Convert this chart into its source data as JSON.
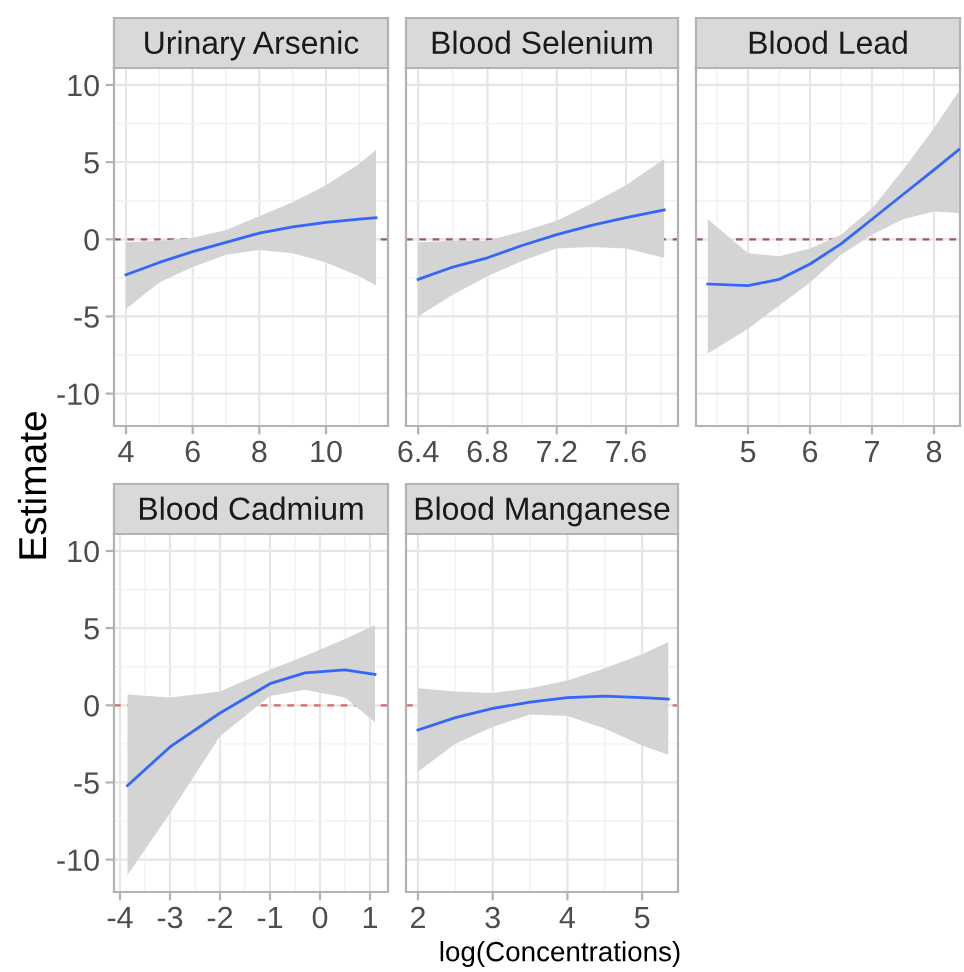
{
  "chart_data": [
    {
      "type": "line",
      "title": "Urinary Arsenic",
      "ylabel": "Estimate",
      "x": [
        4,
        5,
        6,
        7,
        8,
        9,
        10,
        11,
        11.5
      ],
      "series": [
        {
          "color": "#3366ff",
          "values": [
            -2.3,
            -1.5,
            -0.8,
            -0.2,
            0.4,
            0.8,
            1.1,
            1.3,
            1.4
          ],
          "lower": [
            -4.5,
            -2.8,
            -1.8,
            -1.0,
            -0.7,
            -0.9,
            -1.5,
            -2.4,
            -3.0
          ],
          "upper": [
            -0.2,
            -0.1,
            0.1,
            0.6,
            1.5,
            2.4,
            3.5,
            4.9,
            5.8
          ]
        }
      ],
      "xlim": [
        3.64,
        11.86
      ],
      "xticks": [
        4,
        6,
        8,
        10
      ],
      "ylim": [
        -12.1,
        11.1
      ],
      "yticks": [
        -10,
        -5,
        0,
        5,
        10
      ],
      "ref_lines": [
        {
          "axis": "y",
          "value": 0,
          "color": "#a05a5a",
          "line_style": "dashed"
        }
      ],
      "grid": true
    },
    {
      "type": "line",
      "title": "Blood Selenium",
      "x": [
        6.4,
        6.6,
        6.8,
        7.0,
        7.2,
        7.4,
        7.6,
        7.82
      ],
      "series": [
        {
          "color": "#3366ff",
          "values": [
            -2.6,
            -1.8,
            -1.2,
            -0.4,
            0.3,
            0.9,
            1.4,
            1.9
          ],
          "lower": [
            -5.0,
            -3.6,
            -2.4,
            -1.4,
            -0.6,
            -0.5,
            -0.6,
            -1.2
          ],
          "upper": [
            -0.2,
            -0.1,
            -0.1,
            0.5,
            1.2,
            2.3,
            3.5,
            5.2
          ]
        }
      ],
      "xlim": [
        6.33,
        7.9
      ],
      "xticks": [
        6.4,
        6.8,
        7.2,
        7.6
      ],
      "ylim": [
        -12.1,
        11.1
      ],
      "yticks": [
        -10,
        -5,
        0,
        5,
        10
      ],
      "ref_lines": [
        {
          "axis": "y",
          "value": 0,
          "color": "#a05a5a",
          "line_style": "dashed"
        }
      ],
      "grid": true,
      "tick_labels": "x"
    },
    {
      "type": "line",
      "title": "Blood Lead",
      "x": [
        4.35,
        5,
        5.5,
        6,
        6.5,
        7,
        7.5,
        8,
        8.4
      ],
      "series": [
        {
          "color": "#3366ff",
          "values": [
            -2.9,
            -3.0,
            -2.6,
            -1.6,
            -0.3,
            1.3,
            2.9,
            4.5,
            5.8
          ],
          "lower": [
            -7.4,
            -5.8,
            -4.3,
            -2.8,
            -1.0,
            0.3,
            1.3,
            1.8,
            1.7
          ],
          "upper": [
            1.3,
            -0.9,
            -1.1,
            -0.6,
            0.3,
            2.0,
            4.5,
            7.2,
            9.6
          ]
        }
      ],
      "xlim": [
        4.16,
        8.42
      ],
      "xticks": [
        5,
        6,
        7,
        8
      ],
      "ylim": [
        -12.1,
        11.1
      ],
      "yticks": [
        -10,
        -5,
        0,
        5,
        10
      ],
      "ref_lines": [
        {
          "axis": "y",
          "value": 0,
          "color": "#a05a5a",
          "line_style": "dashed"
        }
      ],
      "grid": true,
      "tick_labels": "x"
    },
    {
      "type": "line",
      "title": "Blood Cadmium",
      "x": [
        -3.85,
        -3,
        -2,
        -1,
        -0.3,
        0.5,
        1.1
      ],
      "series": [
        {
          "color": "#3366ff",
          "values": [
            -5.2,
            -2.7,
            -0.5,
            1.4,
            2.1,
            2.3,
            2.0
          ],
          "lower": [
            -11.0,
            -7.0,
            -2.0,
            0.6,
            1.0,
            0.5,
            -1.1
          ],
          "upper": [
            0.7,
            0.5,
            0.9,
            2.3,
            3.2,
            4.3,
            5.2
          ]
        }
      ],
      "xlim": [
        -4.12,
        1.36
      ],
      "xticks": [
        -4,
        -3,
        -2,
        -1,
        0,
        1
      ],
      "ylim": [
        -12.1,
        11.1
      ],
      "yticks": [
        -10,
        -5,
        0,
        5,
        10
      ],
      "ref_lines": [
        {
          "axis": "y",
          "value": 0,
          "color": "#e06666",
          "line_style": "dashed"
        }
      ],
      "grid": true
    },
    {
      "type": "line",
      "title": "Blood Manganese",
      "xlabel": "log(Concentrations)",
      "x": [
        2,
        2.5,
        3,
        3.5,
        4,
        4.5,
        5,
        5.35
      ],
      "series": [
        {
          "color": "#3366ff",
          "values": [
            -1.6,
            -0.8,
            -0.2,
            0.2,
            0.5,
            0.6,
            0.5,
            0.4
          ],
          "lower": [
            -4.3,
            -2.5,
            -1.4,
            -0.6,
            -0.7,
            -1.5,
            -2.6,
            -3.2
          ],
          "upper": [
            1.1,
            0.9,
            0.8,
            1.1,
            1.6,
            2.4,
            3.3,
            4.1
          ]
        }
      ],
      "xlim": [
        1.84,
        5.48
      ],
      "xticks": [
        2,
        3,
        4,
        5
      ],
      "ylim": [
        -12.1,
        11.1
      ],
      "yticks": [
        -10,
        -5,
        0,
        5,
        10
      ],
      "ref_lines": [
        {
          "axis": "y",
          "value": 0,
          "color": "#e06666",
          "line_style": "dashed"
        }
      ],
      "grid": true,
      "tick_labels": "x"
    }
  ]
}
